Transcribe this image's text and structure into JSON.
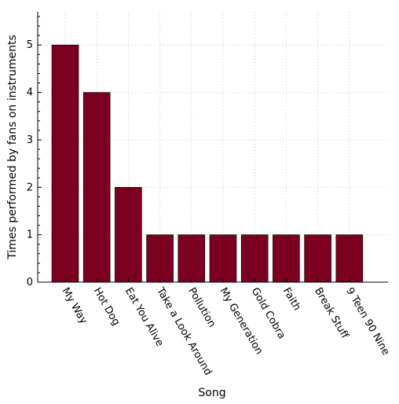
{
  "chart_data": {
    "type": "bar",
    "categories": [
      "My Way",
      "Hot Dog",
      "Eat You Alive",
      "Take a Look Around",
      "Pollution",
      "My Generation",
      "Gold Cobra",
      "Faith",
      "Break Stuff",
      "9 Teen 90 Nine"
    ],
    "values": [
      5,
      4,
      2,
      1,
      1,
      1,
      1,
      1,
      1,
      1
    ],
    "xlabel": "Song",
    "ylabel": "Times performed by fans on instruments",
    "ylim": [
      0,
      5.7
    ],
    "yticks": [
      0,
      1,
      2,
      3,
      4,
      5
    ],
    "grid": true,
    "bar_color": "#7b0020"
  }
}
